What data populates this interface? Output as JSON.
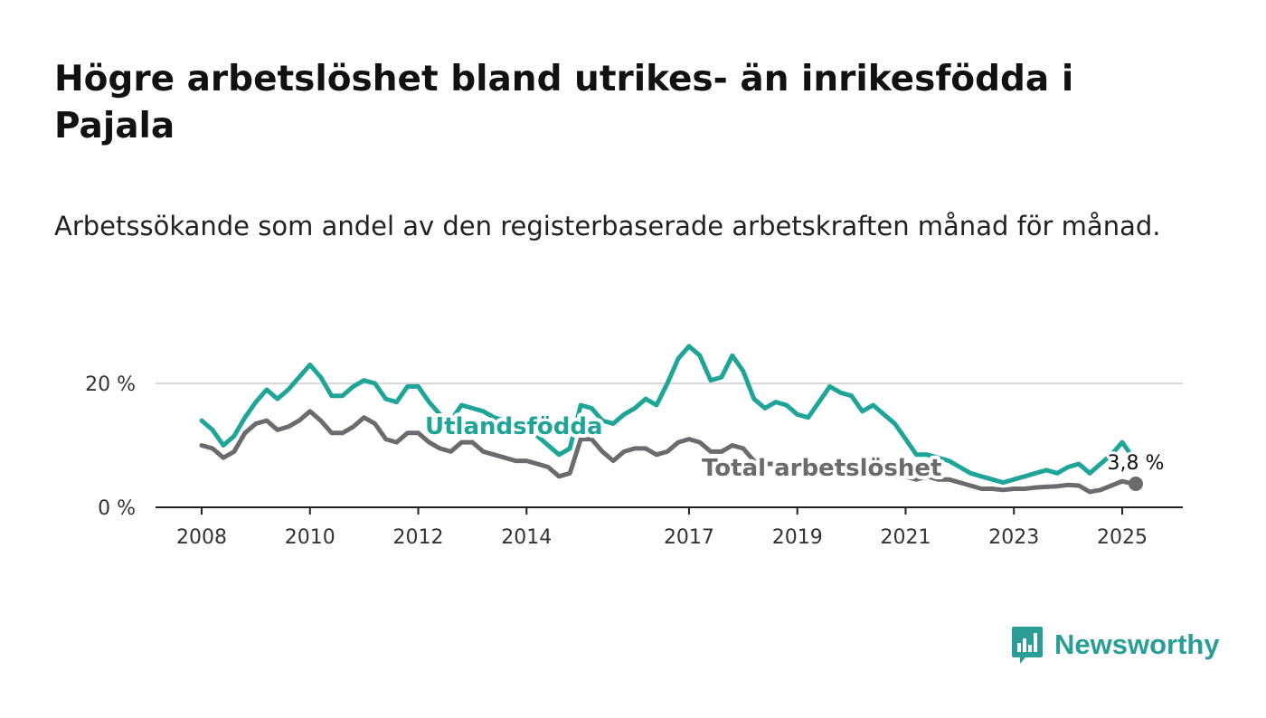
{
  "title": "Högre arbetslöshet bland utrikes- än inrikesfödda i Pajala",
  "subtitle": "Arbetssökande som andel av den registerbaserade arbetskraften månad för månad.",
  "brand": {
    "name": "Newsworthy",
    "color": "#2a9d97"
  },
  "chart_data": {
    "type": "line",
    "title": "Högre arbetslöshet bland utrikes- än inrikesfödda i Pajala",
    "subtitle": "Arbetssökande som andel av den registerbaserade arbetskraften månad för månad.",
    "xlabel": "",
    "ylabel": "",
    "ylim": [
      0,
      30
    ],
    "xlim": [
      2007.5,
      2026.1
    ],
    "y_ticks": [
      0,
      20
    ],
    "y_tick_labels": [
      "0 %",
      "20 %"
    ],
    "x_ticks": [
      2008,
      2010,
      2012,
      2014,
      2017,
      2019,
      2021,
      2023,
      2025
    ],
    "x_tick_labels": [
      "2008",
      "2010",
      "2012",
      "2014",
      "2017",
      "2019",
      "2021",
      "2023",
      "2025"
    ],
    "grid": "horizontal",
    "legend": "direct labels on lines",
    "series": [
      {
        "name": "Utlandsfödda",
        "color": "#1fa598",
        "x": [
          2008.0,
          2008.2,
          2008.4,
          2008.6,
          2008.8,
          2009.0,
          2009.2,
          2009.4,
          2009.6,
          2009.8,
          2010.0,
          2010.2,
          2010.4,
          2010.6,
          2010.8,
          2011.0,
          2011.2,
          2011.4,
          2011.6,
          2011.8,
          2012.0,
          2012.2,
          2012.4,
          2012.6,
          2012.8,
          2013.0,
          2013.2,
          2013.4,
          2013.6,
          2013.8,
          2014.0,
          2014.2,
          2014.4,
          2014.6,
          2014.8,
          2015.0,
          2015.2,
          2015.4,
          2015.6,
          2015.8,
          2016.0,
          2016.2,
          2016.4,
          2016.6,
          2016.8,
          2017.0,
          2017.2,
          2017.4,
          2017.6,
          2017.8,
          2018.0,
          2018.2,
          2018.4,
          2018.6,
          2018.8,
          2019.0,
          2019.2,
          2019.4,
          2019.6,
          2019.8,
          2020.0,
          2020.2,
          2020.4,
          2020.6,
          2020.8,
          2021.0,
          2021.2,
          2021.4,
          2021.6,
          2021.8,
          2022.0,
          2022.2,
          2022.4,
          2022.6,
          2022.8,
          2023.0,
          2023.2,
          2023.4,
          2023.6,
          2023.8,
          2024.0,
          2024.2,
          2024.4,
          2024.6,
          2024.8,
          2025.0,
          2025.2
        ],
        "values": [
          14.0,
          12.5,
          10.0,
          11.5,
          14.5,
          17.0,
          19.0,
          17.5,
          19.0,
          21.0,
          23.0,
          21.0,
          18.0,
          18.0,
          19.5,
          20.5,
          20.0,
          17.5,
          17.0,
          19.5,
          19.5,
          17.0,
          15.0,
          14.0,
          16.5,
          16.0,
          15.5,
          14.5,
          14.0,
          13.0,
          12.5,
          11.5,
          10.0,
          8.5,
          9.5,
          16.5,
          16.0,
          14.0,
          13.5,
          15.0,
          16.0,
          17.5,
          16.5,
          20.0,
          24.0,
          26.0,
          24.5,
          20.5,
          21.0,
          24.5,
          22.0,
          17.5,
          16.0,
          17.0,
          16.5,
          15.0,
          14.5,
          17.0,
          19.5,
          18.5,
          18.0,
          15.5,
          16.5,
          15.0,
          13.5,
          11.0,
          8.5,
          8.5,
          8.0,
          7.5,
          6.5,
          5.5,
          5.0,
          4.5,
          4.0,
          4.5,
          5.0,
          5.5,
          6.0,
          5.5,
          6.5,
          7.0,
          5.5,
          7.0,
          8.5,
          10.5,
          8.0
        ]
      },
      {
        "name": "Total arbetslöshet",
        "color": "#6b6a6e",
        "x": [
          2008.0,
          2008.2,
          2008.4,
          2008.6,
          2008.8,
          2009.0,
          2009.2,
          2009.4,
          2009.6,
          2009.8,
          2010.0,
          2010.2,
          2010.4,
          2010.6,
          2010.8,
          2011.0,
          2011.2,
          2011.4,
          2011.6,
          2011.8,
          2012.0,
          2012.2,
          2012.4,
          2012.6,
          2012.8,
          2013.0,
          2013.2,
          2013.4,
          2013.6,
          2013.8,
          2014.0,
          2014.2,
          2014.4,
          2014.6,
          2014.8,
          2015.0,
          2015.2,
          2015.4,
          2015.6,
          2015.8,
          2016.0,
          2016.2,
          2016.4,
          2016.6,
          2016.8,
          2017.0,
          2017.2,
          2017.4,
          2017.6,
          2017.8,
          2018.0,
          2018.2,
          2018.4,
          2018.6,
          2018.8,
          2019.0,
          2019.2,
          2019.4,
          2019.6,
          2019.8,
          2020.0,
          2020.2,
          2020.4,
          2020.6,
          2020.8,
          2021.0,
          2021.2,
          2021.4,
          2021.6,
          2021.8,
          2022.0,
          2022.2,
          2022.4,
          2022.6,
          2022.8,
          2023.0,
          2023.2,
          2023.4,
          2023.6,
          2023.8,
          2024.0,
          2024.2,
          2024.4,
          2024.6,
          2024.8,
          2025.0,
          2025.2
        ],
        "values": [
          10.0,
          9.5,
          8.0,
          9.0,
          12.0,
          13.5,
          14.0,
          12.5,
          13.0,
          14.0,
          15.5,
          14.0,
          12.0,
          12.0,
          13.0,
          14.5,
          13.5,
          11.0,
          10.5,
          12.0,
          12.0,
          10.5,
          9.5,
          9.0,
          10.5,
          10.5,
          9.0,
          8.5,
          8.0,
          7.5,
          7.5,
          7.0,
          6.5,
          5.0,
          5.5,
          11.0,
          11.0,
          9.0,
          7.5,
          9.0,
          9.5,
          9.5,
          8.5,
          9.0,
          10.5,
          11.0,
          10.5,
          9.0,
          9.0,
          10.0,
          9.5,
          7.5,
          7.0,
          7.0,
          6.5,
          6.5,
          6.0,
          6.5,
          6.5,
          6.0,
          6.0,
          5.5,
          6.0,
          5.5,
          5.0,
          5.0,
          4.5,
          5.0,
          4.5,
          4.5,
          4.0,
          3.5,
          3.0,
          3.0,
          2.8,
          3.0,
          3.0,
          3.2,
          3.3,
          3.4,
          3.6,
          3.5,
          2.5,
          2.8,
          3.5,
          4.2,
          3.8
        ]
      }
    ],
    "end_point": {
      "series": "Total arbetslöshet",
      "x": 2025.25,
      "value": 3.8,
      "label": "3,8 %"
    }
  }
}
